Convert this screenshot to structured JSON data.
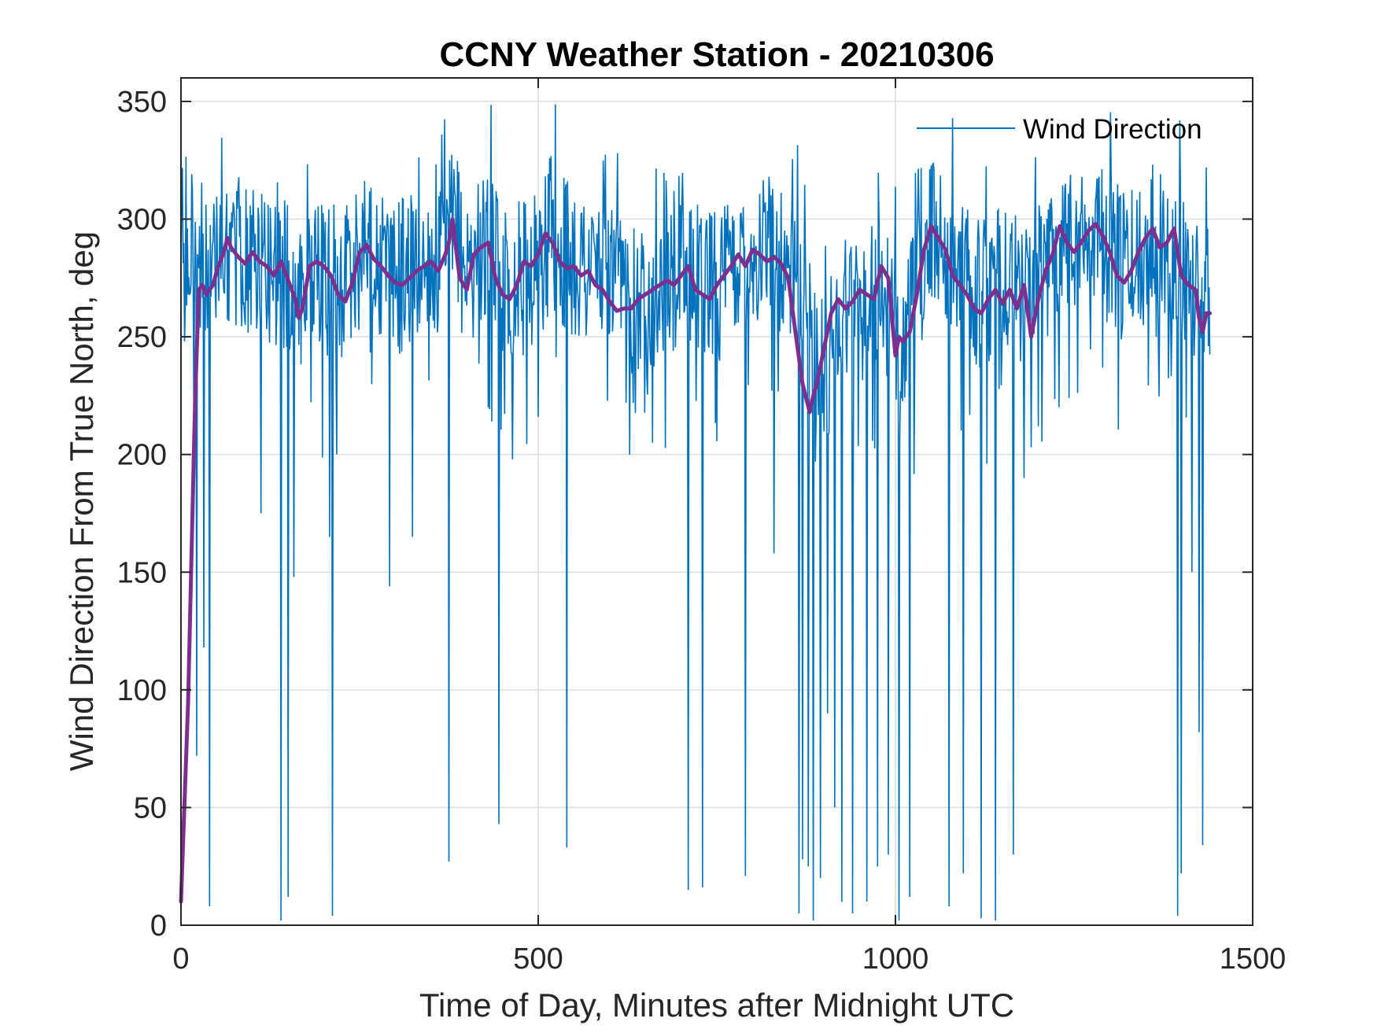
{
  "chart_data": {
    "type": "line",
    "title": "CCNY Weather Station - 20210306",
    "xlabel": "Time of Day, Minutes after Midnight UTC",
    "ylabel": "Wind Direction From True North, deg",
    "xlim": [
      0,
      1500
    ],
    "ylim": [
      0,
      360
    ],
    "xticks": [
      0,
      500,
      1000,
      1500
    ],
    "yticks": [
      0,
      50,
      100,
      150,
      200,
      250,
      300,
      350
    ],
    "xtick_labels": [
      "0",
      "500",
      "1000",
      "1500"
    ],
    "ytick_labels": [
      "0",
      "50",
      "100",
      "150",
      "200",
      "250",
      "300",
      "350"
    ],
    "grid": true,
    "legend": {
      "position": "top-right",
      "entries": [
        "Wind Direction"
      ]
    },
    "colors": {
      "raw": "#0072BD",
      "smoothed": "#7E2F8E",
      "grid": "#dcdcdc",
      "axes": "#262626"
    },
    "series": [
      {
        "name": "Wind Direction",
        "note": "raw 1-minute samples; values oscillate ~250-320 with frequent downward spikes (listed below)",
        "x_range": [
          0,
          1440
        ],
        "baseline_profile_x": [
          0,
          20,
          40,
          60,
          80,
          100,
          120,
          140,
          160,
          180,
          200,
          220,
          240,
          260,
          280,
          300,
          320,
          340,
          360,
          380,
          400,
          420,
          440,
          460,
          480,
          500,
          520,
          540,
          560,
          580,
          600,
          620,
          640,
          660,
          680,
          700,
          720,
          740,
          760,
          780,
          800,
          820,
          840,
          860,
          880,
          900,
          920,
          940,
          960,
          980,
          1000,
          1020,
          1040,
          1060,
          1080,
          1100,
          1120,
          1140,
          1160,
          1180,
          1200,
          1220,
          1240,
          1260,
          1280,
          1300,
          1320,
          1340,
          1360,
          1380,
          1400,
          1420,
          1440
        ],
        "baseline_profile_y": [
          290,
          285,
          283,
          288,
          286,
          283,
          280,
          279,
          266,
          278,
          275,
          267,
          283,
          287,
          281,
          274,
          279,
          281,
          281,
          296,
          278,
          285,
          283,
          268,
          275,
          282,
          292,
          285,
          281,
          280,
          276,
          268,
          263,
          267,
          272,
          274,
          276,
          272,
          273,
          283,
          284,
          288,
          281,
          278,
          256,
          230,
          263,
          263,
          261,
          270,
          250,
          255,
          285,
          296,
          281,
          274,
          267,
          272,
          270,
          268,
          276,
          285,
          295,
          288,
          296,
          287,
          279,
          282,
          292,
          287,
          281,
          270,
          272
        ],
        "spikes_x": [
          5,
          22,
          32,
          40,
          112,
          140,
          150,
          158,
          208,
          212,
          218,
          292,
          324,
          375,
          430,
          435,
          445,
          500,
          540,
          660,
          710,
          730,
          790,
          830,
          865,
          870,
          878,
          885,
          895,
          905,
          915,
          925,
          940,
          960,
          975,
          990,
          1005,
          1020,
          1075,
          1095,
          1120,
          1140,
          1165,
          1180,
          1200,
          1395,
          1400,
          1415,
          1425,
          1430
        ],
        "spikes_y": [
          248,
          72,
          118,
          8,
          175,
          2,
          12,
          148,
          165,
          4,
          200,
          144,
          165,
          27,
          220,
          214,
          43,
          216,
          33,
          205,
          15,
          16,
          21,
          158,
          5,
          28,
          25,
          2,
          20,
          90,
          50,
          10,
          5,
          10,
          25,
          30,
          2,
          12,
          8,
          22,
          3,
          2,
          30,
          190,
          212,
          4,
          22,
          150,
          82,
          34
        ]
      },
      {
        "name": "Smoothed Wind Direction",
        "note": "running mean (thick purple line), not in legend",
        "x": [
          0,
          10,
          18,
          20,
          25,
          30,
          35,
          40,
          45,
          50,
          55,
          60,
          65,
          70,
          80,
          90,
          100,
          110,
          120,
          130,
          140,
          150,
          160,
          165,
          170,
          180,
          190,
          200,
          210,
          220,
          230,
          240,
          250,
          260,
          270,
          280,
          290,
          300,
          310,
          320,
          330,
          340,
          350,
          360,
          370,
          375,
          380,
          390,
          400,
          410,
          420,
          430,
          440,
          450,
          460,
          470,
          480,
          490,
          500,
          510,
          520,
          530,
          540,
          550,
          560,
          570,
          580,
          590,
          600,
          610,
          620,
          630,
          640,
          650,
          660,
          670,
          680,
          690,
          700,
          710,
          720,
          730,
          740,
          750,
          760,
          770,
          780,
          790,
          800,
          810,
          820,
          830,
          840,
          850,
          860,
          870,
          880,
          885,
          890,
          900,
          910,
          920,
          930,
          940,
          950,
          960,
          970,
          980,
          990,
          1000,
          1005,
          1010,
          1020,
          1030,
          1040,
          1050,
          1060,
          1070,
          1080,
          1090,
          1100,
          1110,
          1120,
          1130,
          1140,
          1150,
          1160,
          1170,
          1180,
          1190,
          1200,
          1210,
          1220,
          1230,
          1240,
          1250,
          1260,
          1270,
          1280,
          1290,
          1300,
          1310,
          1320,
          1330,
          1340,
          1350,
          1360,
          1370,
          1380,
          1390,
          1400,
          1410,
          1420,
          1425,
          1430,
          1435,
          1440
        ],
        "y": [
          10,
          95,
          200,
          225,
          270,
          272,
          268,
          270,
          272,
          278,
          282,
          286,
          292,
          288,
          284,
          281,
          286,
          282,
          280,
          276,
          282,
          274,
          266,
          258,
          262,
          280,
          282,
          280,
          276,
          268,
          265,
          273,
          286,
          289,
          283,
          280,
          276,
          273,
          272,
          275,
          278,
          280,
          282,
          278,
          285,
          290,
          300,
          275,
          270,
          285,
          288,
          290,
          275,
          268,
          266,
          272,
          282,
          280,
          285,
          294,
          290,
          282,
          279,
          280,
          276,
          278,
          272,
          270,
          265,
          261,
          262,
          262,
          266,
          268,
          270,
          272,
          274,
          272,
          276,
          280,
          270,
          268,
          266,
          272,
          276,
          280,
          285,
          280,
          287,
          285,
          282,
          284,
          281,
          275,
          252,
          230,
          218,
          225,
          230,
          245,
          260,
          266,
          262,
          265,
          270,
          268,
          266,
          280,
          275,
          242,
          250,
          248,
          252,
          268,
          287,
          297,
          292,
          287,
          276,
          272,
          268,
          262,
          260,
          266,
          270,
          264,
          270,
          262,
          272,
          250,
          266,
          278,
          285,
          297,
          290,
          286,
          290,
          295,
          298,
          293,
          286,
          276,
          273,
          278,
          286,
          292,
          296,
          288,
          290,
          296,
          276,
          272,
          270,
          258,
          252,
          260,
          260
        ]
      }
    ]
  }
}
